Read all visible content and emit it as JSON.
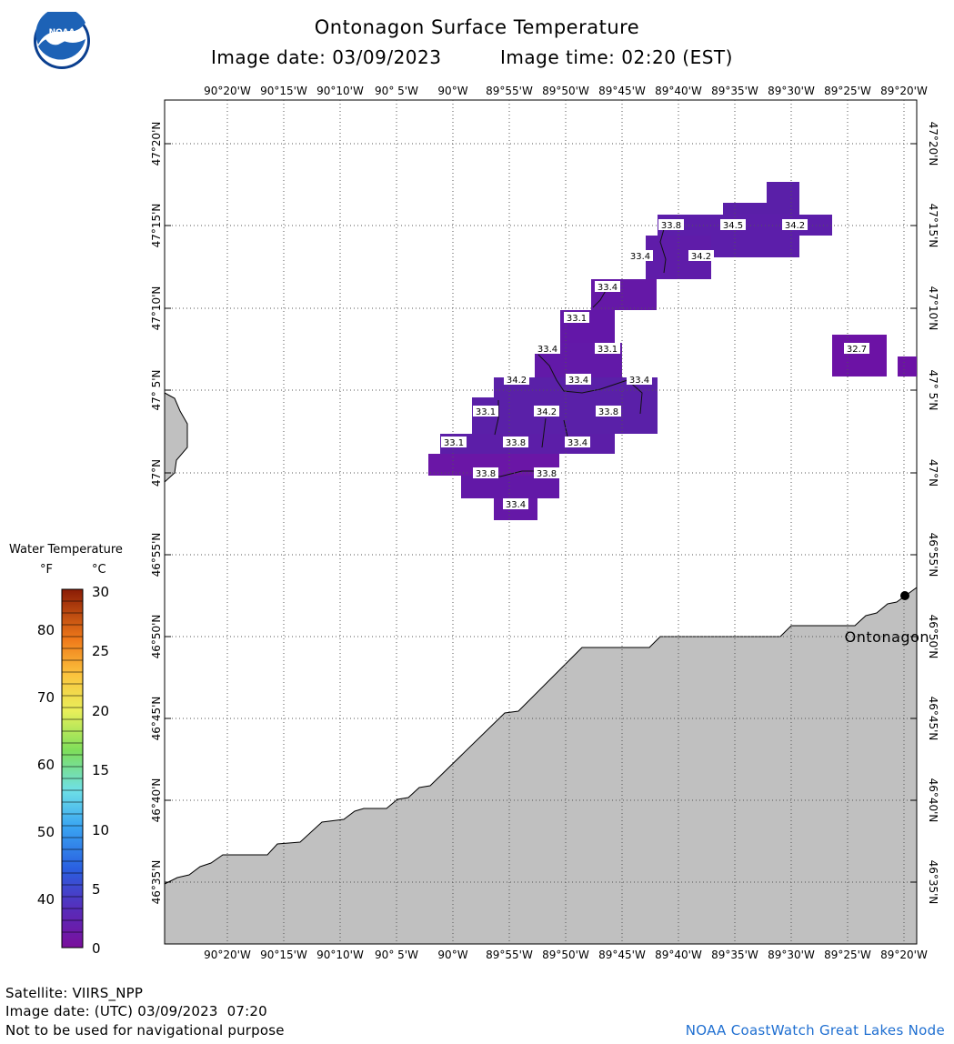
{
  "header": {
    "title": "Ontonagon Surface Temperature",
    "image_date": "Image date: 03/09/2023",
    "image_time": "Image time: 02:20 (EST)"
  },
  "logo": {
    "text": "NOAA",
    "colors": {
      "outer": "#1d62b6",
      "wave": "#ffffff",
      "ring": "#0b3f8f"
    }
  },
  "map": {
    "lon_labels": [
      "90°20'W",
      "90°15'W",
      "90°10'W",
      "90° 5'W",
      "90°W",
      "89°55'W",
      "89°50'W",
      "89°45'W",
      "89°40'W",
      "89°35'W",
      "89°30'W",
      "89°25'W",
      "89°20'W"
    ],
    "lat_labels": [
      "47°20'N",
      "47°15'N",
      "47°10'N",
      "47° 5'N",
      "47°N",
      "46°55'N",
      "46°50'N",
      "46°45'N",
      "46°40'N",
      "46°35'N"
    ],
    "city": {
      "name": "Ontonagon"
    },
    "temperature_labels": [
      "33.8",
      "34.5",
      "34.2",
      "33.4",
      "34.2",
      "33.4",
      "33.1",
      "33.4",
      "33.1",
      "34.2",
      "33.4",
      "33.4",
      "33.1",
      "34.2",
      "33.8",
      "33.1",
      "33.8",
      "33.4",
      "33.8",
      "33.8",
      "33.4",
      "32.7"
    ],
    "colors": {
      "land": "#c0c0c0",
      "water_fill": "#5a20a8",
      "water_fill_alt": "#6a16a6",
      "grid": "#555555"
    }
  },
  "legend": {
    "title": "Water Temperature",
    "unit_f": "°F",
    "unit_c": "°C",
    "f_ticks": [
      "80",
      "70",
      "60",
      "50",
      "40"
    ],
    "c_ticks": [
      "30",
      "25",
      "20",
      "15",
      "10",
      "5",
      "0"
    ]
  },
  "footer": {
    "satellite": "Satellite: VIIRS_NPP",
    "utc_date": "Image date: (UTC) 03/09/2023  07:20",
    "warning": "Not to be used for navigational purpose",
    "credit": "NOAA CoastWatch Great Lakes Node"
  }
}
